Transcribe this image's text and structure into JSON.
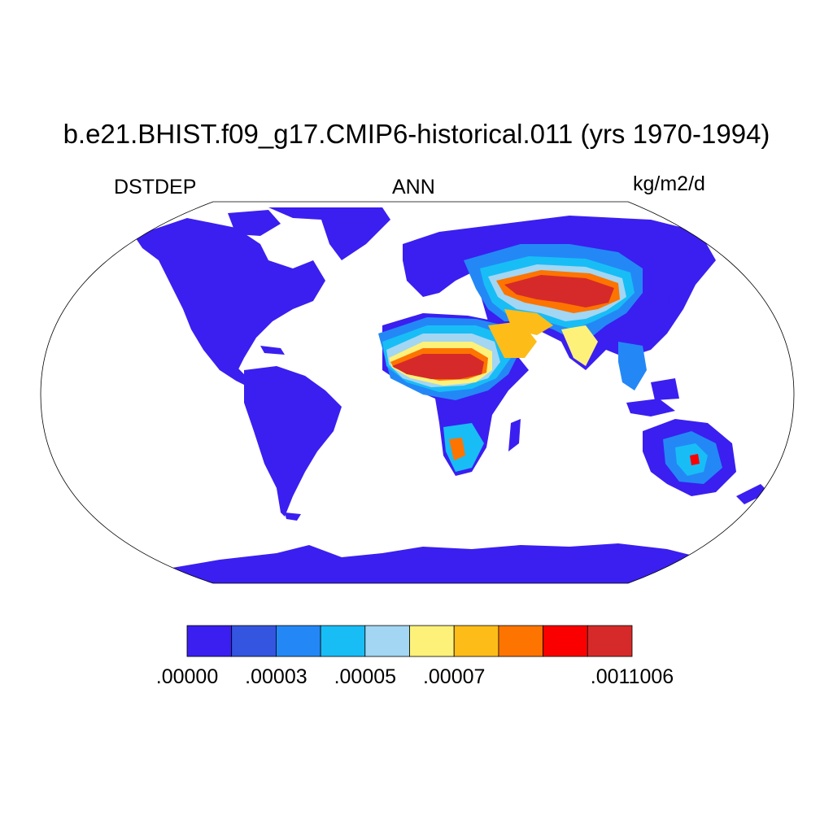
{
  "title": "b.e21.BHIST.f09_g17.CMIP6-historical.011 (yrs 1970-1994)",
  "left_label": "DSTDEP",
  "center_label": "ANN",
  "right_label": "kg/m2/d",
  "projection": "Robinson",
  "colorbar": {
    "colors": [
      "#3a1ff0",
      "#3355e0",
      "#2388f6",
      "#18bdf6",
      "#a2d6f2",
      "#fdf17a",
      "#fdbc18",
      "#fd7400",
      "#fb0000",
      "#d62a2a"
    ],
    "labels": [
      {
        "text": ".00000",
        "boundary": 0
      },
      {
        "text": ".00003",
        "boundary": 2
      },
      {
        "text": ".00005",
        "boundary": 4
      },
      {
        "text": ".00007",
        "boundary": 6
      },
      {
        "text": ".0011006",
        "boundary": 10
      }
    ]
  },
  "map_colors": {
    "ocean": "#ffffff",
    "low": "#3a1ff0",
    "mid_low": "#3355e0",
    "mid": "#2388f6",
    "cyan": "#18bdf6",
    "light": "#a2d6f2",
    "yellow": "#fdf17a",
    "orange_yellow": "#fdbc18",
    "orange": "#fd7400",
    "red": "#fb0000",
    "dark_red": "#d62a2a"
  }
}
